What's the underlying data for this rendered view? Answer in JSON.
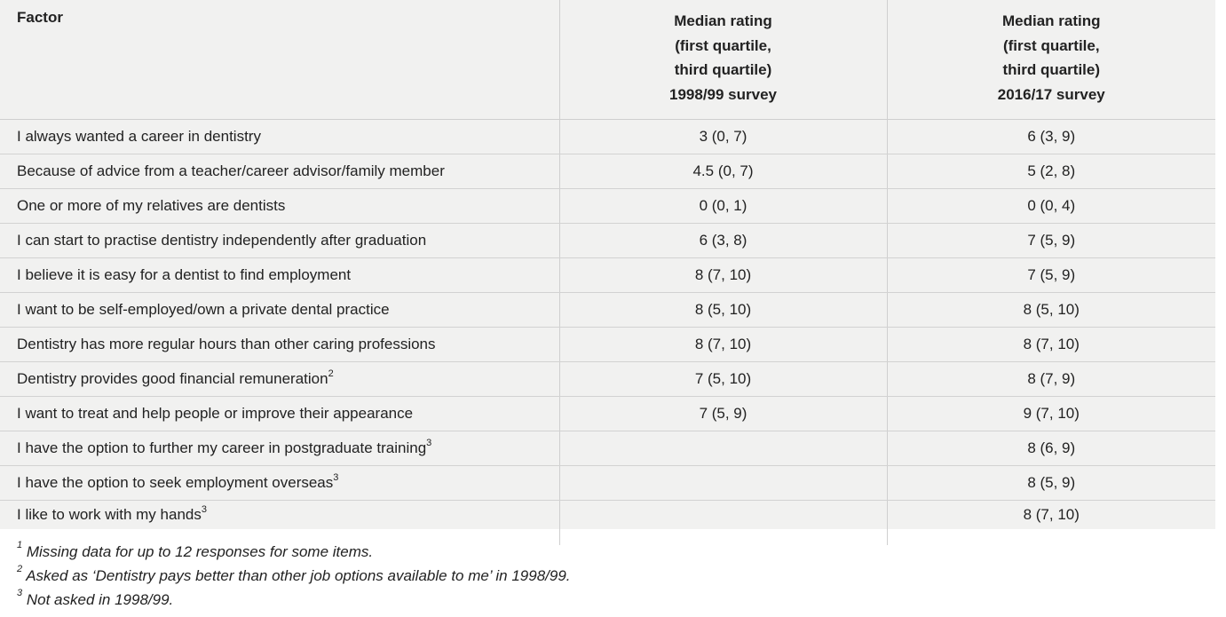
{
  "table": {
    "headers": {
      "factor": "Factor",
      "col1": [
        "Median rating",
        "(first quartile,",
        "third quartile)",
        "1998/99 survey"
      ],
      "col2": [
        "Median rating",
        "(first quartile,",
        "third quartile)",
        "2016/17 survey"
      ]
    },
    "rows": [
      {
        "factor": "I always wanted a career in dentistry",
        "sup": "",
        "v1": "3 (0, 7)",
        "v2": "6 (3, 9)"
      },
      {
        "factor": "Because of advice from a teacher/career advisor/family member",
        "sup": "",
        "v1": "4.5 (0, 7)",
        "v2": "5 (2, 8)"
      },
      {
        "factor": "One or more of my relatives are dentists",
        "sup": "",
        "v1": "0 (0, 1)",
        "v2": "0 (0, 4)"
      },
      {
        "factor": "I can start to practise dentistry independently after graduation",
        "sup": "",
        "v1": "6 (3, 8)",
        "v2": "7 (5, 9)"
      },
      {
        "factor": "I believe it is easy for a dentist to find employment",
        "sup": "",
        "v1": "8 (7, 10)",
        "v2": "7 (5, 9)"
      },
      {
        "factor": "I want to be self-employed/own a private dental practice",
        "sup": "",
        "v1": "8 (5, 10)",
        "v2": "8 (5, 10)"
      },
      {
        "factor": "Dentistry has more regular hours than other caring professions",
        "sup": "",
        "v1": "8 (7, 10)",
        "v2": "8 (7, 10)"
      },
      {
        "factor": "Dentistry provides good financial remuneration",
        "sup": "2",
        "v1": "7 (5, 10)",
        "v2": "8 (7, 9)"
      },
      {
        "factor": "I want to treat and help people or improve their appearance",
        "sup": "",
        "v1": "7 (5, 9)",
        "v2": "9 (7, 10)"
      },
      {
        "factor": "I have the option to further my career in postgraduate training",
        "sup": "3",
        "v1": "",
        "v2": "8 (6, 9)"
      },
      {
        "factor": "I have the option to seek employment overseas",
        "sup": "3",
        "v1": "",
        "v2": "8 (5, 9)"
      },
      {
        "factor": "I like to work with my hands",
        "sup": "3",
        "v1": "",
        "v2": "8 (7, 10)"
      }
    ]
  },
  "footnotes": [
    {
      "mark": "1",
      "text": "Missing data for up to 12 responses for some items."
    },
    {
      "mark": "2",
      "text": "Asked as ‘Dentistry pays better than other job options available to me’ in 1998/99."
    },
    {
      "mark": "3",
      "text": "Not asked in 1998/99."
    }
  ]
}
